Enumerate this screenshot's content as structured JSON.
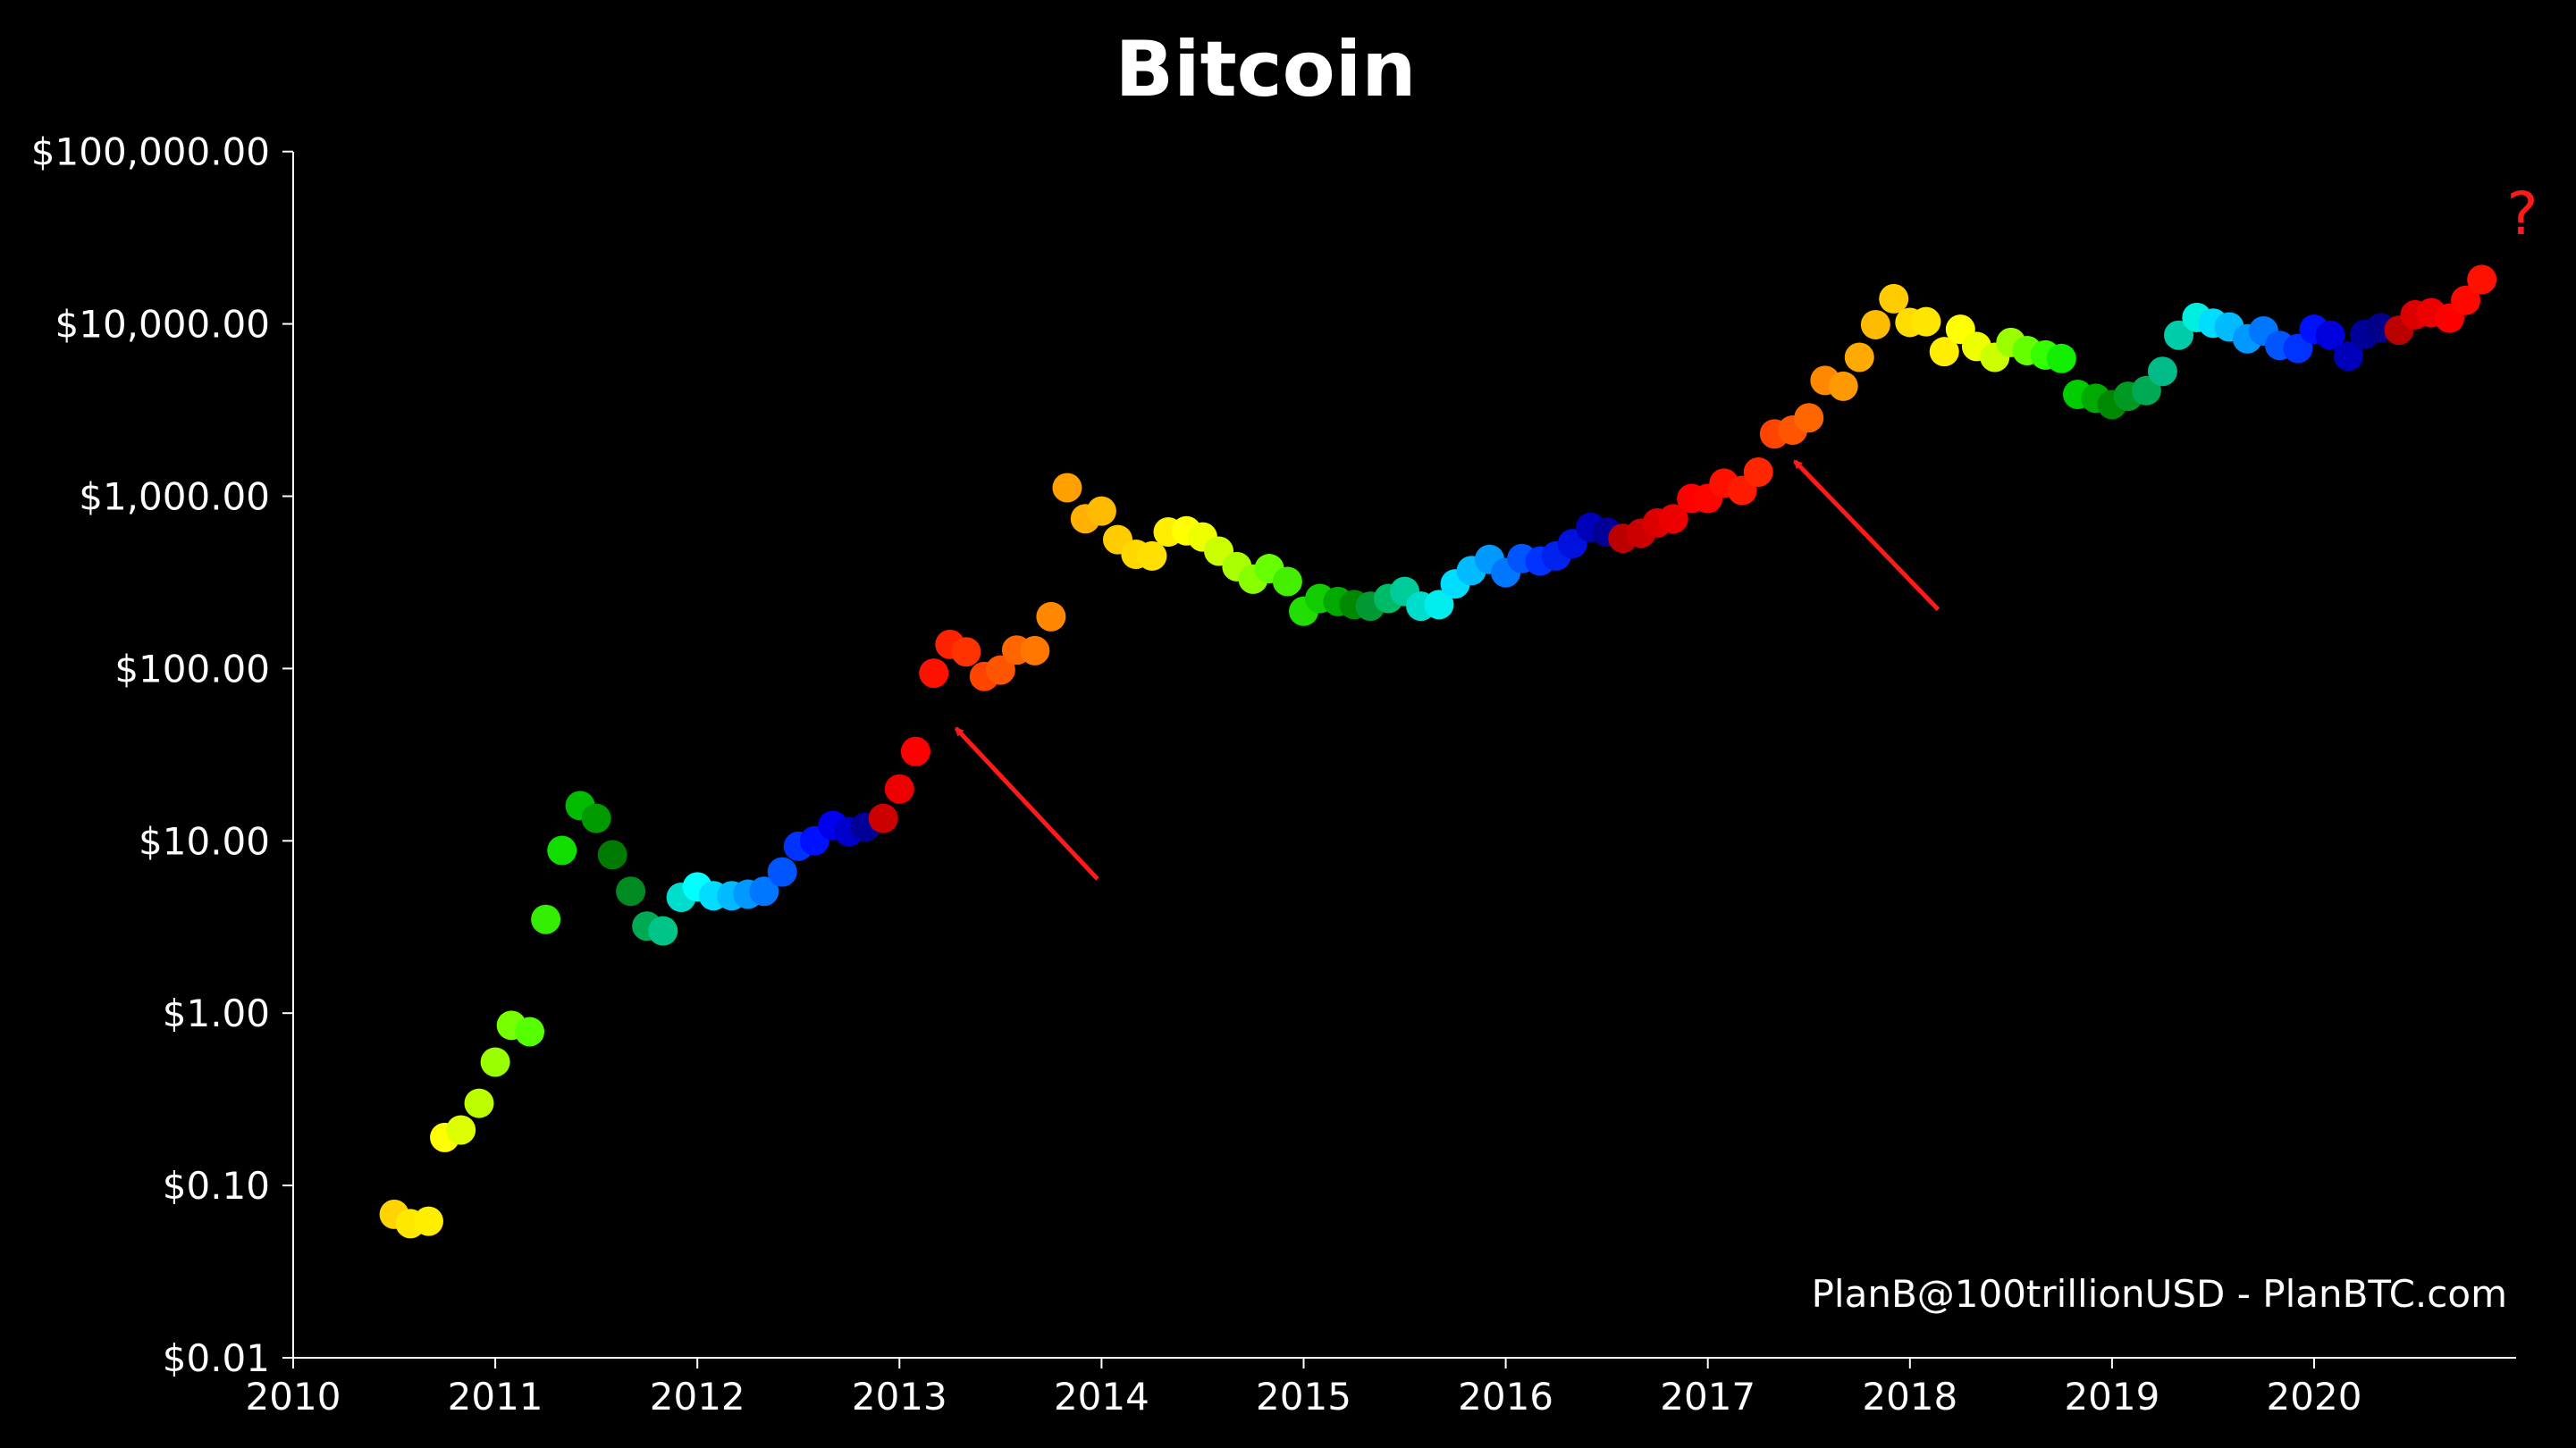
{
  "chart_data": {
    "type": "scatter",
    "title": "Bitcoin",
    "xlabel": "",
    "ylabel": "",
    "yscale": "log",
    "xlim": [
      2010,
      2021
    ],
    "ylim": [
      0.01,
      100000
    ],
    "grid": false,
    "xticks": [
      2010,
      2011,
      2012,
      2013,
      2014,
      2015,
      2016,
      2017,
      2018,
      2019,
      2020
    ],
    "xtick_labels": [
      "2010",
      "2011",
      "2012",
      "2013",
      "2014",
      "2015",
      "2016",
      "2017",
      "2018",
      "2019",
      "2020"
    ],
    "yticks": [
      0.01,
      0.1,
      1,
      10,
      100,
      1000,
      10000,
      100000
    ],
    "ytick_labels": [
      "$0.01",
      "$0.10",
      "$1.00",
      "$10.00",
      "$100.00",
      "$1,000.00",
      "$10,000.00",
      "$100,000.00"
    ],
    "watermark": "PlanB@100trillionUSD - PlanBTC.com",
    "annotation_text": "?",
    "annotation_color": "#ff1a1a",
    "arrows": [
      {
        "from": [
          2013.98,
          6
        ],
        "to": [
          2013.28,
          45
        ]
      },
      {
        "from": [
          2018.14,
          220
        ],
        "to": [
          2017.43,
          1600
        ]
      }
    ],
    "points": [
      {
        "x": 2010.5,
        "y": 0.068,
        "c": "#ffd400"
      },
      {
        "x": 2010.58,
        "y": 0.06,
        "c": "#ffe800"
      },
      {
        "x": 2010.67,
        "y": 0.062,
        "c": "#ffee00"
      },
      {
        "x": 2010.75,
        "y": 0.19,
        "c": "#ffff00"
      },
      {
        "x": 2010.83,
        "y": 0.21,
        "c": "#ddff00"
      },
      {
        "x": 2010.92,
        "y": 0.3,
        "c": "#bbff00"
      },
      {
        "x": 2011.0,
        "y": 0.52,
        "c": "#99ff00"
      },
      {
        "x": 2011.08,
        "y": 0.85,
        "c": "#77ff00"
      },
      {
        "x": 2011.17,
        "y": 0.78,
        "c": "#55ff00"
      },
      {
        "x": 2011.25,
        "y": 3.5,
        "c": "#33ee00"
      },
      {
        "x": 2011.33,
        "y": 8.8,
        "c": "#11dd00"
      },
      {
        "x": 2011.42,
        "y": 16,
        "c": "#00bb00"
      },
      {
        "x": 2011.5,
        "y": 13.5,
        "c": "#009900"
      },
      {
        "x": 2011.58,
        "y": 8.3,
        "c": "#007a00"
      },
      {
        "x": 2011.67,
        "y": 5.1,
        "c": "#008a22"
      },
      {
        "x": 2011.75,
        "y": 3.2,
        "c": "#00aa55"
      },
      {
        "x": 2011.83,
        "y": 3.0,
        "c": "#00c488"
      },
      {
        "x": 2011.92,
        "y": 4.7,
        "c": "#00ddcc"
      },
      {
        "x": 2012.0,
        "y": 5.4,
        "c": "#00ffff"
      },
      {
        "x": 2012.08,
        "y": 4.8,
        "c": "#00ddff"
      },
      {
        "x": 2012.17,
        "y": 4.8,
        "c": "#00bbff"
      },
      {
        "x": 2012.25,
        "y": 4.9,
        "c": "#0099ff"
      },
      {
        "x": 2012.33,
        "y": 5.1,
        "c": "#0077ff"
      },
      {
        "x": 2012.42,
        "y": 6.6,
        "c": "#0055ff"
      },
      {
        "x": 2012.5,
        "y": 9.3,
        "c": "#0033ff"
      },
      {
        "x": 2012.58,
        "y": 10.0,
        "c": "#0011ff"
      },
      {
        "x": 2012.67,
        "y": 12.3,
        "c": "#0000ee"
      },
      {
        "x": 2012.75,
        "y": 11.3,
        "c": "#0000cc"
      },
      {
        "x": 2012.83,
        "y": 12.0,
        "c": "#000099"
      },
      {
        "x": 2012.92,
        "y": 13.5,
        "c": "#cc0000"
      },
      {
        "x": 2013.0,
        "y": 20,
        "c": "#ee0000"
      },
      {
        "x": 2013.08,
        "y": 33,
        "c": "#ff0000"
      },
      {
        "x": 2013.17,
        "y": 94,
        "c": "#ff1100"
      },
      {
        "x": 2013.25,
        "y": 138,
        "c": "#ff2200"
      },
      {
        "x": 2013.33,
        "y": 125,
        "c": "#ff3300"
      },
      {
        "x": 2013.42,
        "y": 90,
        "c": "#ff4400"
      },
      {
        "x": 2013.5,
        "y": 98,
        "c": "#ff5500"
      },
      {
        "x": 2013.58,
        "y": 128,
        "c": "#ff6600"
      },
      {
        "x": 2013.67,
        "y": 127,
        "c": "#ff7700"
      },
      {
        "x": 2013.75,
        "y": 200,
        "c": "#ff8800"
      },
      {
        "x": 2013.83,
        "y": 1120,
        "c": "#ffa000"
      },
      {
        "x": 2013.92,
        "y": 740,
        "c": "#ffb000"
      },
      {
        "x": 2014.0,
        "y": 820,
        "c": "#ffbb00"
      },
      {
        "x": 2014.08,
        "y": 560,
        "c": "#ffcc00"
      },
      {
        "x": 2014.17,
        "y": 460,
        "c": "#ffd800"
      },
      {
        "x": 2014.25,
        "y": 450,
        "c": "#ffe000"
      },
      {
        "x": 2014.33,
        "y": 620,
        "c": "#ffee00"
      },
      {
        "x": 2014.42,
        "y": 630,
        "c": "#ffff00"
      },
      {
        "x": 2014.5,
        "y": 580,
        "c": "#eeff00"
      },
      {
        "x": 2014.58,
        "y": 480,
        "c": "#ccff00"
      },
      {
        "x": 2014.67,
        "y": 390,
        "c": "#aaff00"
      },
      {
        "x": 2014.75,
        "y": 330,
        "c": "#88ff00"
      },
      {
        "x": 2014.83,
        "y": 380,
        "c": "#66ff00"
      },
      {
        "x": 2014.92,
        "y": 320,
        "c": "#44ee00"
      },
      {
        "x": 2015.0,
        "y": 215,
        "c": "#22dd00"
      },
      {
        "x": 2015.08,
        "y": 255,
        "c": "#11cc00"
      },
      {
        "x": 2015.17,
        "y": 245,
        "c": "#00aa00"
      },
      {
        "x": 2015.25,
        "y": 235,
        "c": "#008800"
      },
      {
        "x": 2015.33,
        "y": 230,
        "c": "#009933"
      },
      {
        "x": 2015.42,
        "y": 255,
        "c": "#00bb66"
      },
      {
        "x": 2015.5,
        "y": 280,
        "c": "#00cc99"
      },
      {
        "x": 2015.58,
        "y": 230,
        "c": "#00ddcc"
      },
      {
        "x": 2015.67,
        "y": 235,
        "c": "#00eeee"
      },
      {
        "x": 2015.75,
        "y": 310,
        "c": "#00ddff"
      },
      {
        "x": 2015.83,
        "y": 370,
        "c": "#00bbff"
      },
      {
        "x": 2015.92,
        "y": 430,
        "c": "#0099ff"
      },
      {
        "x": 2016.0,
        "y": 360,
        "c": "#0077ff"
      },
      {
        "x": 2016.08,
        "y": 435,
        "c": "#0055ff"
      },
      {
        "x": 2016.17,
        "y": 420,
        "c": "#0033ff"
      },
      {
        "x": 2016.25,
        "y": 450,
        "c": "#0022ee"
      },
      {
        "x": 2016.33,
        "y": 530,
        "c": "#0011dd"
      },
      {
        "x": 2016.42,
        "y": 660,
        "c": "#0000bb"
      },
      {
        "x": 2016.5,
        "y": 620,
        "c": "#000099"
      },
      {
        "x": 2016.58,
        "y": 570,
        "c": "#bb0000"
      },
      {
        "x": 2016.67,
        "y": 610,
        "c": "#cc0000"
      },
      {
        "x": 2016.75,
        "y": 700,
        "c": "#dd0000"
      },
      {
        "x": 2016.83,
        "y": 740,
        "c": "#ee0000"
      },
      {
        "x": 2016.92,
        "y": 970,
        "c": "#ff0000"
      },
      {
        "x": 2017.0,
        "y": 970,
        "c": "#ff0500"
      },
      {
        "x": 2017.08,
        "y": 1190,
        "c": "#ff1000"
      },
      {
        "x": 2017.17,
        "y": 1080,
        "c": "#ff1a00"
      },
      {
        "x": 2017.25,
        "y": 1380,
        "c": "#ff2600"
      },
      {
        "x": 2017.33,
        "y": 2300,
        "c": "#ff4400"
      },
      {
        "x": 2017.42,
        "y": 2420,
        "c": "#ff5500"
      },
      {
        "x": 2017.5,
        "y": 2850,
        "c": "#ff6600"
      },
      {
        "x": 2017.58,
        "y": 4700,
        "c": "#ff8800"
      },
      {
        "x": 2017.67,
        "y": 4350,
        "c": "#ff9900"
      },
      {
        "x": 2017.75,
        "y": 6400,
        "c": "#ffaa00"
      },
      {
        "x": 2017.83,
        "y": 9900,
        "c": "#ffbb00"
      },
      {
        "x": 2017.92,
        "y": 14000,
        "c": "#ffcc00"
      },
      {
        "x": 2018.0,
        "y": 10200,
        "c": "#ffdd00"
      },
      {
        "x": 2018.08,
        "y": 10300,
        "c": "#ffe600"
      },
      {
        "x": 2018.17,
        "y": 6900,
        "c": "#ffee00"
      },
      {
        "x": 2018.25,
        "y": 9300,
        "c": "#ffff00"
      },
      {
        "x": 2018.33,
        "y": 7400,
        "c": "#eeff00"
      },
      {
        "x": 2018.42,
        "y": 6400,
        "c": "#ccff00"
      },
      {
        "x": 2018.5,
        "y": 7800,
        "c": "#99ff00"
      },
      {
        "x": 2018.58,
        "y": 7000,
        "c": "#66ff00"
      },
      {
        "x": 2018.67,
        "y": 6600,
        "c": "#33ff00"
      },
      {
        "x": 2018.75,
        "y": 6300,
        "c": "#11ee00"
      },
      {
        "x": 2018.83,
        "y": 3900,
        "c": "#00cc00"
      },
      {
        "x": 2018.92,
        "y": 3700,
        "c": "#00aa00"
      },
      {
        "x": 2019.0,
        "y": 3400,
        "c": "#008800"
      },
      {
        "x": 2019.08,
        "y": 3800,
        "c": "#009922"
      },
      {
        "x": 2019.17,
        "y": 4100,
        "c": "#00aa55"
      },
      {
        "x": 2019.25,
        "y": 5300,
        "c": "#00bb88"
      },
      {
        "x": 2019.33,
        "y": 8600,
        "c": "#00ccaa"
      },
      {
        "x": 2019.42,
        "y": 10900,
        "c": "#00eedd"
      },
      {
        "x": 2019.5,
        "y": 10100,
        "c": "#00ddff"
      },
      {
        "x": 2019.58,
        "y": 9600,
        "c": "#00bbff"
      },
      {
        "x": 2019.67,
        "y": 8200,
        "c": "#0099ff"
      },
      {
        "x": 2019.75,
        "y": 9100,
        "c": "#0077ff"
      },
      {
        "x": 2019.83,
        "y": 7500,
        "c": "#0055ff"
      },
      {
        "x": 2019.92,
        "y": 7200,
        "c": "#0033ff"
      },
      {
        "x": 2020.0,
        "y": 9300,
        "c": "#0011ff"
      },
      {
        "x": 2020.08,
        "y": 8600,
        "c": "#0000dd"
      },
      {
        "x": 2020.17,
        "y": 6500,
        "c": "#0000bb"
      },
      {
        "x": 2020.25,
        "y": 8700,
        "c": "#000099"
      },
      {
        "x": 2020.33,
        "y": 9500,
        "c": "#000088"
      },
      {
        "x": 2020.42,
        "y": 9200,
        "c": "#bb0000"
      },
      {
        "x": 2020.5,
        "y": 11300,
        "c": "#dd0000"
      },
      {
        "x": 2020.58,
        "y": 11600,
        "c": "#ee0000"
      },
      {
        "x": 2020.67,
        "y": 10800,
        "c": "#ff0000"
      },
      {
        "x": 2020.75,
        "y": 13700,
        "c": "#ff0800"
      },
      {
        "x": 2020.83,
        "y": 18100,
        "c": "#ff1100"
      }
    ]
  }
}
